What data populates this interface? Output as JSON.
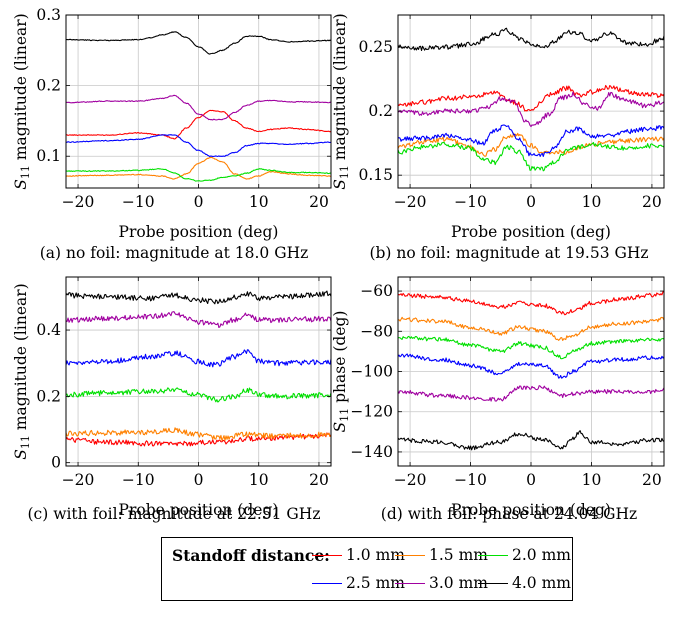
{
  "legend": {
    "title": "Standoff distance:",
    "items": [
      {
        "label": "1.0 mm",
        "color": "#ff0000"
      },
      {
        "label": "1.5 mm",
        "color": "#ff8000"
      },
      {
        "label": "2.0 mm",
        "color": "#00e000"
      },
      {
        "label": "2.5 mm",
        "color": "#0000ff"
      },
      {
        "label": "3.0 mm",
        "color": "#a000a0"
      },
      {
        "label": "4.0 mm",
        "color": "#000000"
      }
    ]
  },
  "panels": [
    {
      "caption": "(a) no foil: magnitude at 18.0 GHz"
    },
    {
      "caption": "(b) no foil: magnitude at 19.53 GHz"
    },
    {
      "caption": "(c) with foil: magnitude at 22.51 GHz"
    },
    {
      "caption": "(d) with foil: phase at 24.04 GHz"
    }
  ],
  "chart_data": [
    {
      "type": "line",
      "xlabel": "Probe position (deg)",
      "ylabel": "S11 magnitude (linear)",
      "xlim": [
        -22,
        22
      ],
      "ylim": [
        0.055,
        0.3
      ],
      "xticks": [
        -20,
        -10,
        0,
        10,
        20
      ],
      "xtick_labels": [
        "−20",
        "−10",
        "0",
        "10",
        "20"
      ],
      "yticks": [
        0.1,
        0.2,
        0.3
      ],
      "ytick_labels": [
        "0.1",
        "0.2",
        "0.3"
      ],
      "grid": true,
      "series": [
        {
          "name": "1.0 mm",
          "x": [
            -22,
            -15,
            -10,
            -6,
            -4,
            -2,
            0,
            2,
            4,
            6,
            8,
            10,
            12,
            15,
            18,
            22
          ],
          "y": [
            0.13,
            0.13,
            0.133,
            0.13,
            0.125,
            0.14,
            0.155,
            0.165,
            0.163,
            0.15,
            0.14,
            0.135,
            0.138,
            0.14,
            0.138,
            0.135
          ]
        },
        {
          "name": "1.5 mm",
          "x": [
            -22,
            -15,
            -10,
            -6,
            -4,
            -2,
            0,
            2,
            4,
            6,
            8,
            10,
            12,
            15,
            18,
            22
          ],
          "y": [
            0.072,
            0.073,
            0.074,
            0.072,
            0.068,
            0.075,
            0.09,
            0.098,
            0.092,
            0.075,
            0.068,
            0.072,
            0.078,
            0.075,
            0.073,
            0.072
          ]
        },
        {
          "name": "2.0 mm",
          "x": [
            -22,
            -15,
            -10,
            -6,
            -4,
            -2,
            0,
            2,
            4,
            6,
            8,
            10,
            12,
            15,
            18,
            22
          ],
          "y": [
            0.079,
            0.079,
            0.08,
            0.082,
            0.076,
            0.068,
            0.065,
            0.066,
            0.07,
            0.072,
            0.076,
            0.082,
            0.08,
            0.077,
            0.077,
            0.076
          ]
        },
        {
          "name": "2.5 mm",
          "x": [
            -22,
            -15,
            -10,
            -6,
            -4,
            -2,
            0,
            2,
            4,
            6,
            8,
            10,
            12,
            15,
            18,
            22
          ],
          "y": [
            0.12,
            0.122,
            0.124,
            0.13,
            0.13,
            0.12,
            0.108,
            0.1,
            0.1,
            0.105,
            0.115,
            0.118,
            0.118,
            0.117,
            0.118,
            0.12
          ]
        },
        {
          "name": "3.0 mm",
          "x": [
            -22,
            -15,
            -10,
            -6,
            -4,
            -2,
            0,
            2,
            4,
            6,
            8,
            10,
            12,
            15,
            18,
            22
          ],
          "y": [
            0.176,
            0.178,
            0.178,
            0.182,
            0.186,
            0.175,
            0.16,
            0.152,
            0.152,
            0.162,
            0.172,
            0.178,
            0.179,
            0.177,
            0.177,
            0.176
          ]
        },
        {
          "name": "4.0 mm",
          "x": [
            -22,
            -15,
            -10,
            -8,
            -6,
            -4,
            -2,
            0,
            2,
            4,
            6,
            8,
            10,
            12,
            15,
            18,
            22
          ],
          "y": [
            0.265,
            0.264,
            0.265,
            0.268,
            0.272,
            0.276,
            0.268,
            0.255,
            0.245,
            0.25,
            0.26,
            0.27,
            0.27,
            0.265,
            0.262,
            0.263,
            0.264
          ]
        }
      ]
    },
    {
      "type": "line",
      "xlabel": "Probe position (deg)",
      "ylabel": "S11 magnitude (linear)",
      "xlim": [
        -22,
        22
      ],
      "ylim": [
        0.14,
        0.275
      ],
      "xticks": [
        -20,
        -10,
        0,
        10,
        20
      ],
      "xtick_labels": [
        "−20",
        "−10",
        "0",
        "10",
        "20"
      ],
      "yticks": [
        0.15,
        0.2,
        0.25
      ],
      "ytick_labels": [
        "0.15",
        "0.2",
        "0.25"
      ],
      "grid": true,
      "series": [
        {
          "name": "1.0 mm",
          "x": [
            -22,
            -18,
            -14,
            -10,
            -6,
            -3,
            0,
            3,
            6,
            8,
            10,
            13,
            16,
            19,
            22
          ],
          "y": [
            0.204,
            0.207,
            0.21,
            0.211,
            0.214,
            0.207,
            0.2,
            0.213,
            0.218,
            0.212,
            0.215,
            0.219,
            0.215,
            0.213,
            0.212
          ]
        },
        {
          "name": "1.5 mm",
          "x": [
            -22,
            -18,
            -14,
            -10,
            -8,
            -6,
            -4,
            -2,
            0,
            2,
            4,
            6,
            8,
            10,
            13,
            16,
            19,
            22
          ],
          "y": [
            0.172,
            0.176,
            0.178,
            0.172,
            0.166,
            0.17,
            0.18,
            0.182,
            0.173,
            0.168,
            0.168,
            0.168,
            0.172,
            0.174,
            0.176,
            0.177,
            0.178,
            0.178
          ]
        },
        {
          "name": "2.0 mm",
          "x": [
            -22,
            -18,
            -14,
            -10,
            -8,
            -6,
            -4,
            -2,
            0,
            2,
            4,
            6,
            8,
            10,
            13,
            16,
            19,
            22
          ],
          "y": [
            0.168,
            0.172,
            0.174,
            0.171,
            0.162,
            0.16,
            0.172,
            0.168,
            0.155,
            0.155,
            0.16,
            0.17,
            0.172,
            0.174,
            0.172,
            0.171,
            0.173,
            0.173
          ]
        },
        {
          "name": "2.5 mm",
          "x": [
            -22,
            -18,
            -14,
            -10,
            -8,
            -6,
            -4,
            -2,
            0,
            2,
            4,
            6,
            8,
            10,
            13,
            16,
            19,
            22
          ],
          "y": [
            0.178,
            0.179,
            0.181,
            0.177,
            0.175,
            0.185,
            0.189,
            0.178,
            0.166,
            0.166,
            0.172,
            0.184,
            0.186,
            0.18,
            0.181,
            0.184,
            0.186,
            0.187
          ]
        },
        {
          "name": "3.0 mm",
          "x": [
            -22,
            -18,
            -14,
            -10,
            -7,
            -5,
            -3,
            -1,
            0,
            1,
            3,
            5,
            7,
            9,
            11,
            13,
            16,
            19,
            22
          ],
          "y": [
            0.2,
            0.198,
            0.2,
            0.2,
            0.203,
            0.21,
            0.208,
            0.193,
            0.189,
            0.19,
            0.198,
            0.21,
            0.213,
            0.205,
            0.202,
            0.213,
            0.208,
            0.204,
            0.207
          ]
        },
        {
          "name": "4.0 mm",
          "x": [
            -22,
            -18,
            -14,
            -10,
            -6,
            -4,
            -2,
            0,
            2,
            4,
            6,
            8,
            10,
            13,
            16,
            19,
            22
          ],
          "y": [
            0.25,
            0.249,
            0.25,
            0.252,
            0.26,
            0.263,
            0.256,
            0.252,
            0.25,
            0.255,
            0.262,
            0.26,
            0.255,
            0.261,
            0.253,
            0.252,
            0.257
          ]
        }
      ]
    },
    {
      "type": "line",
      "xlabel": "Probe position (deg)",
      "ylabel": "S11 magnitude (linear)",
      "xlim": [
        -22,
        22
      ],
      "ylim": [
        -0.01,
        0.56
      ],
      "xticks": [
        -20,
        -10,
        0,
        10,
        20
      ],
      "xtick_labels": [
        "−20",
        "−10",
        "0",
        "10",
        "20"
      ],
      "yticks": [
        0,
        0.2,
        0.4
      ],
      "ytick_labels": [
        "0",
        "0.2",
        "0.4"
      ],
      "grid": true,
      "series": [
        {
          "name": "1.0 mm",
          "x": [
            -22,
            -15,
            -8,
            -4,
            0,
            4,
            8,
            12,
            16,
            22
          ],
          "y": [
            0.07,
            0.062,
            0.058,
            0.055,
            0.06,
            0.063,
            0.072,
            0.075,
            0.078,
            0.082
          ]
        },
        {
          "name": "1.5 mm",
          "x": [
            -22,
            -15,
            -8,
            -4,
            0,
            4,
            8,
            12,
            16,
            22
          ],
          "y": [
            0.088,
            0.09,
            0.092,
            0.098,
            0.085,
            0.075,
            0.085,
            0.08,
            0.082,
            0.085
          ]
        },
        {
          "name": "2.0 mm",
          "x": [
            -22,
            -15,
            -8,
            -4,
            0,
            3,
            6,
            8,
            10,
            14,
            18,
            22
          ],
          "y": [
            0.205,
            0.21,
            0.215,
            0.22,
            0.205,
            0.19,
            0.2,
            0.22,
            0.205,
            0.2,
            0.202,
            0.205
          ]
        },
        {
          "name": "2.5 mm",
          "x": [
            -22,
            -15,
            -8,
            -4,
            0,
            3,
            6,
            8,
            10,
            14,
            18,
            22
          ],
          "y": [
            0.3,
            0.305,
            0.32,
            0.33,
            0.305,
            0.295,
            0.32,
            0.335,
            0.305,
            0.3,
            0.302,
            0.305
          ]
        },
        {
          "name": "3.0 mm",
          "x": [
            -22,
            -15,
            -8,
            -4,
            0,
            3,
            6,
            8,
            10,
            14,
            18,
            22
          ],
          "y": [
            0.43,
            0.435,
            0.44,
            0.45,
            0.425,
            0.415,
            0.43,
            0.445,
            0.43,
            0.43,
            0.432,
            0.435
          ]
        },
        {
          "name": "4.0 mm",
          "x": [
            -22,
            -15,
            -8,
            -4,
            0,
            3,
            6,
            8,
            10,
            14,
            18,
            22
          ],
          "y": [
            0.505,
            0.5,
            0.495,
            0.505,
            0.49,
            0.485,
            0.5,
            0.51,
            0.495,
            0.5,
            0.505,
            0.51
          ]
        }
      ]
    },
    {
      "type": "line",
      "xlabel": "Probe position (deg)",
      "ylabel": "S11 phase (deg)",
      "xlim": [
        -22,
        22
      ],
      "ylim": [
        -147,
        -53
      ],
      "xticks": [
        -20,
        -10,
        0,
        10,
        20
      ],
      "xtick_labels": [
        "−20",
        "−10",
        "0",
        "10",
        "20"
      ],
      "yticks": [
        -140,
        -120,
        -100,
        -80,
        -60
      ],
      "ytick_labels": [
        "−140",
        "−120",
        "−100",
        "−80",
        "−60"
      ],
      "grid": true,
      "series": [
        {
          "name": "1.0 mm",
          "x": [
            -22,
            -15,
            -10,
            -5,
            -2,
            2,
            5,
            7,
            10,
            15,
            20,
            22
          ],
          "y": [
            -62,
            -63,
            -65,
            -68,
            -66,
            -67,
            -71,
            -70,
            -66,
            -64,
            -62,
            -61
          ]
        },
        {
          "name": "1.5 mm",
          "x": [
            -22,
            -15,
            -10,
            -5,
            -2,
            2,
            5,
            7,
            10,
            15,
            20,
            22
          ],
          "y": [
            -74,
            -75,
            -78,
            -81,
            -78,
            -80,
            -84,
            -82,
            -78,
            -76,
            -75,
            -74
          ]
        },
        {
          "name": "2.0 mm",
          "x": [
            -22,
            -15,
            -10,
            -5,
            -2,
            2,
            5,
            7,
            10,
            15,
            20,
            22
          ],
          "y": [
            -83,
            -84,
            -87,
            -90,
            -86,
            -88,
            -93,
            -90,
            -86,
            -85,
            -84,
            -84
          ]
        },
        {
          "name": "2.5 mm",
          "x": [
            -22,
            -15,
            -10,
            -5,
            -2,
            2,
            5,
            7,
            10,
            15,
            20,
            22
          ],
          "y": [
            -92,
            -94,
            -97,
            -101,
            -96,
            -97,
            -103,
            -100,
            -95,
            -94,
            -93,
            -93
          ]
        },
        {
          "name": "3.0 mm",
          "x": [
            -22,
            -15,
            -10,
            -5,
            -2,
            2,
            5,
            7,
            10,
            15,
            20,
            22
          ],
          "y": [
            -110,
            -112,
            -113,
            -114,
            -108,
            -108,
            -112,
            -111,
            -110,
            -110,
            -110,
            -109
          ]
        },
        {
          "name": "4.0 mm",
          "x": [
            -22,
            -15,
            -10,
            -5,
            -2,
            2,
            5,
            7,
            8,
            10,
            15,
            20,
            22
          ],
          "y": [
            -134,
            -135,
            -138,
            -135,
            -131,
            -134,
            -138,
            -133,
            -130,
            -135,
            -136,
            -134,
            -134
          ]
        }
      ]
    }
  ]
}
